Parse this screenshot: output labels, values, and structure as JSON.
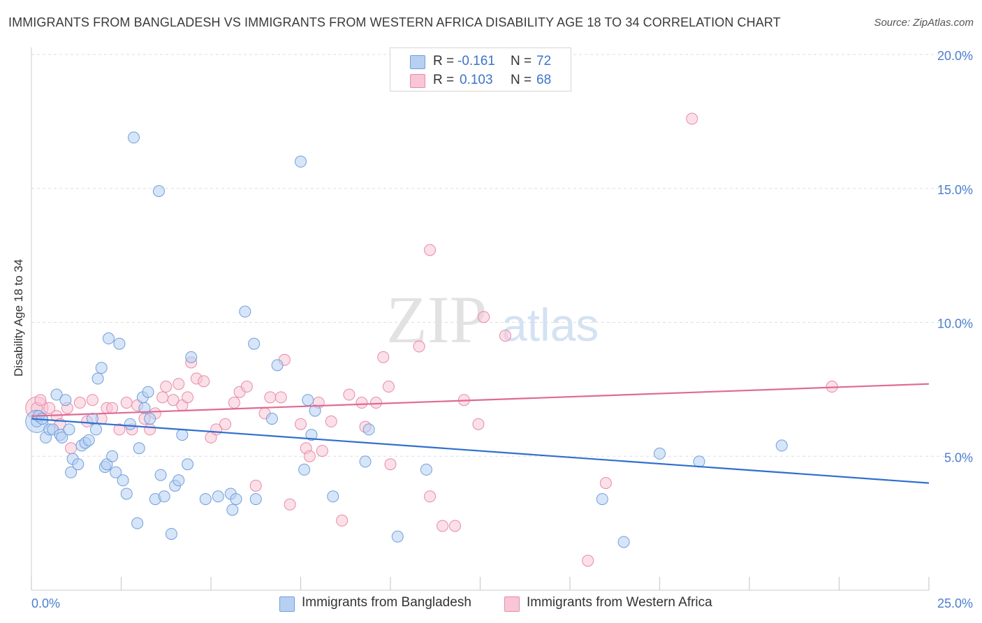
{
  "title": "IMMIGRANTS FROM BANGLADESH VS IMMIGRANTS FROM WESTERN AFRICA DISABILITY AGE 18 TO 34 CORRELATION CHART",
  "source": "Source: ZipAtlas.com",
  "watermark": {
    "zip": "ZIP",
    "atlas": "atlas"
  },
  "legend": {
    "rows": [
      {
        "r_label": "R =",
        "r_value": "-0.161",
        "n_label": "N =",
        "n_value": "72"
      },
      {
        "r_label": "R =",
        "r_value": "0.103",
        "n_label": "N =",
        "n_value": "68"
      }
    ]
  },
  "bottom_legend": {
    "series1": "Immigrants from Bangladesh",
    "series2": "Immigrants from Western Africa"
  },
  "colors": {
    "series1_fill": "#b7d0f2",
    "series1_stroke": "#6f9fdc",
    "series1_line": "#2f6fcf",
    "series2_fill": "#f8c6d5",
    "series2_stroke": "#e88aa8",
    "series2_line": "#e06a95",
    "axis_text": "#4a7fd0",
    "grid": "#dddddd"
  },
  "chart_data": {
    "type": "scatter",
    "title": "IMMIGRANTS FROM BANGLADESH VS IMMIGRANTS FROM WESTERN AFRICA DISABILITY AGE 18 TO 34 CORRELATION CHART",
    "xlabel": "",
    "ylabel": "Disability Age 18 to 34",
    "xlim": [
      0,
      25
    ],
    "ylim": [
      0,
      20
    ],
    "x_tick_labels": [
      "0.0%",
      "25.0%"
    ],
    "y_ticks": [
      5,
      10,
      15,
      20
    ],
    "y_tick_labels": [
      "5.0%",
      "10.0%",
      "15.0%",
      "20.0%"
    ],
    "grid": true,
    "legend_position": "top-center",
    "series": [
      {
        "name": "Immigrants from Bangladesh",
        "R": -0.161,
        "N": 72,
        "trend": [
          [
            0,
            6.4
          ],
          [
            25,
            4.0
          ]
        ],
        "points": [
          [
            0.15,
            6.3
          ],
          [
            0.2,
            6.5
          ],
          [
            0.3,
            6.4
          ],
          [
            0.4,
            5.7
          ],
          [
            0.5,
            6.0
          ],
          [
            0.6,
            6.0
          ],
          [
            0.7,
            7.3
          ],
          [
            0.8,
            5.8
          ],
          [
            0.85,
            5.7
          ],
          [
            0.95,
            7.1
          ],
          [
            1.05,
            6.0
          ],
          [
            1.1,
            4.4
          ],
          [
            1.15,
            4.9
          ],
          [
            1.3,
            4.7
          ],
          [
            1.4,
            5.4
          ],
          [
            1.5,
            5.5
          ],
          [
            1.6,
            5.6
          ],
          [
            1.7,
            6.4
          ],
          [
            1.8,
            6.0
          ],
          [
            1.85,
            7.9
          ],
          [
            1.95,
            8.3
          ],
          [
            2.05,
            4.6
          ],
          [
            2.1,
            4.7
          ],
          [
            2.15,
            9.4
          ],
          [
            2.25,
            5.0
          ],
          [
            2.35,
            4.4
          ],
          [
            2.45,
            9.2
          ],
          [
            2.55,
            4.1
          ],
          [
            2.65,
            3.6
          ],
          [
            2.75,
            6.2
          ],
          [
            2.85,
            16.9
          ],
          [
            2.95,
            2.5
          ],
          [
            3.0,
            5.3
          ],
          [
            3.1,
            7.2
          ],
          [
            3.15,
            6.8
          ],
          [
            3.25,
            7.4
          ],
          [
            3.3,
            6.4
          ],
          [
            3.45,
            3.4
          ],
          [
            3.55,
            14.9
          ],
          [
            3.6,
            4.3
          ],
          [
            3.7,
            3.5
          ],
          [
            3.9,
            2.1
          ],
          [
            4.0,
            3.9
          ],
          [
            4.1,
            4.1
          ],
          [
            4.2,
            5.8
          ],
          [
            4.35,
            4.7
          ],
          [
            4.45,
            8.7
          ],
          [
            4.85,
            3.4
          ],
          [
            5.2,
            3.5
          ],
          [
            5.55,
            3.6
          ],
          [
            5.6,
            3.0
          ],
          [
            5.7,
            3.4
          ],
          [
            5.95,
            10.4
          ],
          [
            6.2,
            9.2
          ],
          [
            6.25,
            3.4
          ],
          [
            6.7,
            6.4
          ],
          [
            6.85,
            8.4
          ],
          [
            7.5,
            16.0
          ],
          [
            7.6,
            4.5
          ],
          [
            7.7,
            7.1
          ],
          [
            7.8,
            5.8
          ],
          [
            7.9,
            6.7
          ],
          [
            8.4,
            3.5
          ],
          [
            9.3,
            4.8
          ],
          [
            9.4,
            6.0
          ],
          [
            10.2,
            2.0
          ],
          [
            11.0,
            4.5
          ],
          [
            15.9,
            3.4
          ],
          [
            16.5,
            1.8
          ],
          [
            17.5,
            5.1
          ],
          [
            18.6,
            4.8
          ],
          [
            20.9,
            5.4
          ]
        ],
        "big_point": [
          0.15,
          6.3
        ]
      },
      {
        "name": "Immigrants from Western Africa",
        "R": 0.103,
        "N": 68,
        "trend": [
          [
            0,
            6.5
          ],
          [
            25,
            7.7
          ]
        ],
        "points": [
          [
            0.15,
            6.8
          ],
          [
            0.25,
            7.1
          ],
          [
            0.5,
            6.8
          ],
          [
            0.7,
            6.5
          ],
          [
            0.8,
            6.2
          ],
          [
            1.0,
            6.8
          ],
          [
            1.1,
            5.3
          ],
          [
            1.35,
            7.0
          ],
          [
            1.55,
            6.3
          ],
          [
            1.7,
            7.1
          ],
          [
            1.95,
            6.4
          ],
          [
            2.1,
            6.8
          ],
          [
            2.25,
            6.8
          ],
          [
            2.45,
            6.0
          ],
          [
            2.65,
            7.0
          ],
          [
            2.8,
            6.0
          ],
          [
            2.95,
            6.9
          ],
          [
            3.15,
            6.4
          ],
          [
            3.3,
            6.0
          ],
          [
            3.45,
            6.6
          ],
          [
            3.65,
            7.2
          ],
          [
            3.75,
            7.6
          ],
          [
            3.95,
            7.1
          ],
          [
            4.1,
            7.7
          ],
          [
            4.2,
            6.9
          ],
          [
            4.35,
            7.2
          ],
          [
            4.45,
            8.5
          ],
          [
            4.6,
            7.9
          ],
          [
            4.8,
            7.8
          ],
          [
            5.0,
            5.7
          ],
          [
            5.15,
            6.0
          ],
          [
            5.4,
            6.2
          ],
          [
            5.65,
            7.0
          ],
          [
            5.8,
            7.4
          ],
          [
            6.0,
            7.6
          ],
          [
            6.25,
            3.9
          ],
          [
            6.5,
            6.6
          ],
          [
            6.65,
            7.2
          ],
          [
            6.95,
            7.2
          ],
          [
            7.05,
            8.6
          ],
          [
            7.2,
            3.2
          ],
          [
            7.5,
            6.2
          ],
          [
            7.65,
            5.3
          ],
          [
            7.75,
            5.0
          ],
          [
            8.0,
            7.0
          ],
          [
            8.1,
            5.2
          ],
          [
            8.35,
            6.3
          ],
          [
            8.65,
            2.6
          ],
          [
            8.85,
            7.3
          ],
          [
            9.2,
            7.0
          ],
          [
            9.3,
            6.1
          ],
          [
            9.6,
            7.0
          ],
          [
            9.8,
            8.7
          ],
          [
            9.95,
            7.6
          ],
          [
            10.0,
            4.7
          ],
          [
            10.8,
            9.1
          ],
          [
            11.1,
            12.7
          ],
          [
            11.1,
            3.5
          ],
          [
            11.45,
            2.4
          ],
          [
            11.8,
            2.4
          ],
          [
            12.05,
            7.1
          ],
          [
            12.45,
            6.2
          ],
          [
            12.6,
            10.2
          ],
          [
            13.2,
            9.5
          ],
          [
            15.5,
            1.1
          ],
          [
            16.0,
            4.0
          ],
          [
            18.4,
            17.6
          ],
          [
            22.3,
            7.6
          ]
        ],
        "big_point": [
          0.15,
          6.8
        ]
      }
    ]
  }
}
